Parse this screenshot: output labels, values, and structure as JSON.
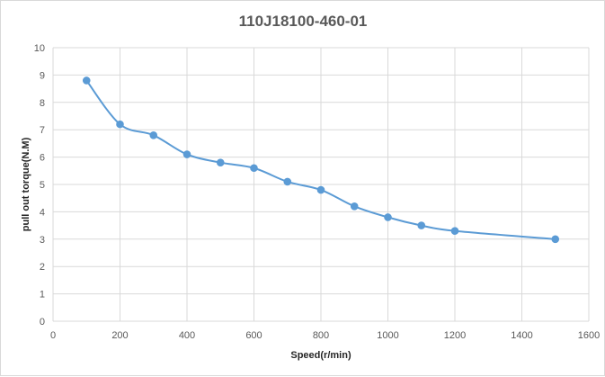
{
  "chart_data": {
    "type": "line",
    "title": "110J18100-460-01",
    "xlabel": "Speed(r/min)",
    "ylabel": "pull out torque(N.M)",
    "xlim": [
      0,
      1600
    ],
    "ylim": [
      0,
      10
    ],
    "xticks": [
      0,
      200,
      400,
      600,
      800,
      1000,
      1200,
      1400,
      1600
    ],
    "yticks": [
      0,
      1,
      2,
      3,
      4,
      5,
      6,
      7,
      8,
      9,
      10
    ],
    "grid": true,
    "smooth": true,
    "series": [
      {
        "color": "#5b9bd5",
        "x": [
          100,
          200,
          300,
          400,
          500,
          600,
          700,
          800,
          900,
          1000,
          1100,
          1200,
          1500
        ],
        "y": [
          8.8,
          7.2,
          6.8,
          6.1,
          5.8,
          5.6,
          5.1,
          4.8,
          4.2,
          3.8,
          3.5,
          3.3,
          3.0
        ]
      }
    ]
  }
}
